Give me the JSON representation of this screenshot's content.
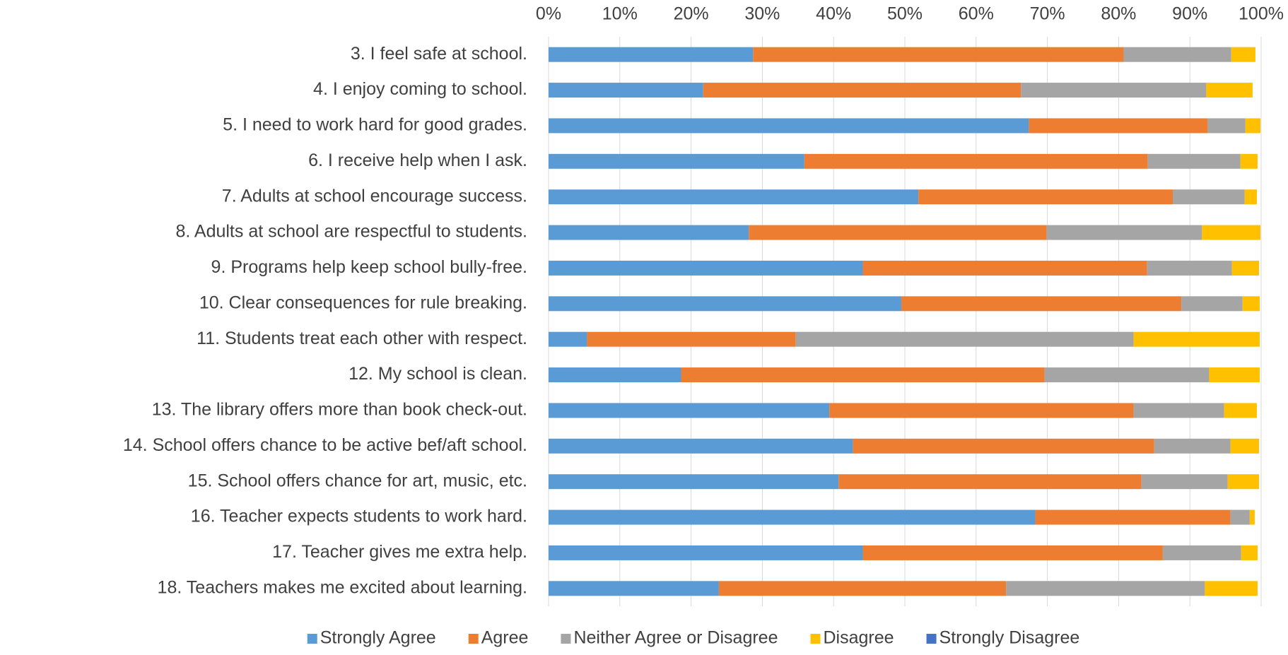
{
  "chart_data": {
    "type": "stacked_bar_horizontal",
    "categories": [
      "3. I feel safe at school.",
      "4. I enjoy coming to school.",
      "5. I need to work hard for good grades.",
      "6. I receive help when I ask.",
      "7. Adults at school encourage success.",
      "8. Adults at school are respectful to students.",
      "9. Programs help keep school bully-free.",
      "10. Clear consequences for rule breaking.",
      "11. Students treat each other with respect.",
      "12. My school is clean.",
      "13. The library offers more than book check-out.",
      "14. School offers chance to be active bef/aft school.",
      "15. School offers chance for art, music, etc.",
      "16. Teacher expects students to work hard.",
      "17. Teacher gives me extra help.",
      "18. Teachers makes me excited about learning."
    ],
    "series": [
      {
        "name": "Strongly Agree",
        "color": "#5b9bd5",
        "values": [
          28.7,
          21.7,
          67.4,
          35.9,
          51.9,
          28.1,
          44.1,
          49.5,
          5.4,
          18.6,
          39.4,
          42.7,
          40.7,
          68.3,
          44.1,
          23.9
        ]
      },
      {
        "name": "Agree",
        "color": "#ed7d31",
        "values": [
          52.0,
          44.6,
          25.1,
          48.2,
          35.7,
          41.8,
          39.9,
          39.3,
          29.3,
          51.0,
          42.7,
          42.3,
          42.5,
          27.4,
          42.1,
          40.3
        ]
      },
      {
        "name": "Neither Agree or Disagree",
        "color": "#a5a5a5",
        "values": [
          15.1,
          26.0,
          5.3,
          13.0,
          10.1,
          21.8,
          11.9,
          8.6,
          47.4,
          23.1,
          12.7,
          10.7,
          12.1,
          2.7,
          11.0,
          27.9
        ]
      },
      {
        "name": "Disagree",
        "color": "#ffc000",
        "values": [
          3.4,
          6.5,
          2.1,
          2.4,
          1.7,
          8.2,
          3.8,
          2.4,
          17.7,
          7.1,
          4.6,
          4.0,
          4.4,
          0.7,
          2.3,
          7.4
        ]
      },
      {
        "name": "Strongly Disagree",
        "color": "#4472c4",
        "values": [
          0,
          0,
          0,
          0,
          0,
          0,
          0,
          0,
          0,
          0,
          0,
          0,
          0,
          0,
          0,
          0
        ]
      }
    ],
    "xlim": [
      0,
      100
    ],
    "xticks": [
      {
        "value": 0,
        "label": "0%"
      },
      {
        "value": 10,
        "label": "10%"
      },
      {
        "value": 20,
        "label": "20%"
      },
      {
        "value": 30,
        "label": "30%"
      },
      {
        "value": 40,
        "label": "40%"
      },
      {
        "value": 50,
        "label": "50%"
      },
      {
        "value": 60,
        "label": "60%"
      },
      {
        "value": 70,
        "label": "70%"
      },
      {
        "value": 80,
        "label": "80%"
      },
      {
        "value": 90,
        "label": "90%"
      },
      {
        "value": 100,
        "label": "100%"
      }
    ],
    "grid": true,
    "legend": "bottom"
  }
}
